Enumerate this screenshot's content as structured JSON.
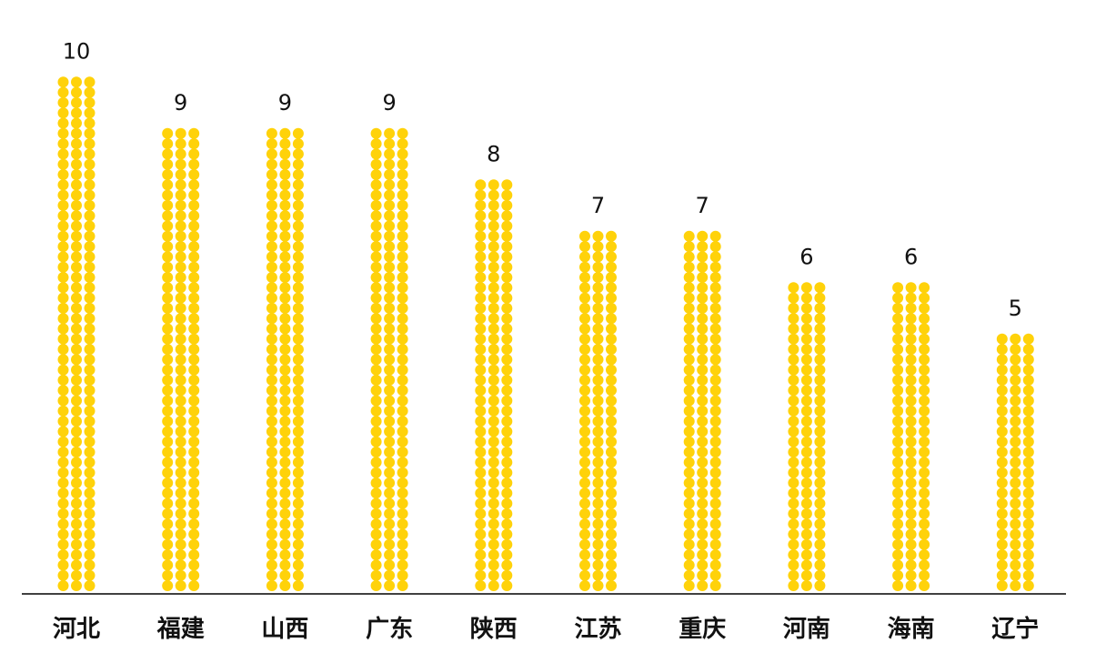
{
  "chart_data": {
    "type": "bar",
    "style": "dot-column",
    "categories": [
      "河北",
      "福建",
      "山西",
      "广东",
      "陕西",
      "江苏",
      "重庆",
      "河南",
      "海南",
      "辽宁"
    ],
    "values": [
      10,
      9,
      9,
      9,
      8,
      7,
      7,
      6,
      6,
      5
    ],
    "data_labels": [
      "10",
      "9",
      "9",
      "9",
      "8",
      "7",
      "7",
      "6",
      "6",
      "5"
    ],
    "title": "",
    "xlabel": "",
    "ylabel": "",
    "ylim": [
      0,
      10
    ],
    "grid": false,
    "legend": "none",
    "colors": {
      "dot": "#FFD20A",
      "baseline": "#000000",
      "text": "#111111"
    }
  }
}
